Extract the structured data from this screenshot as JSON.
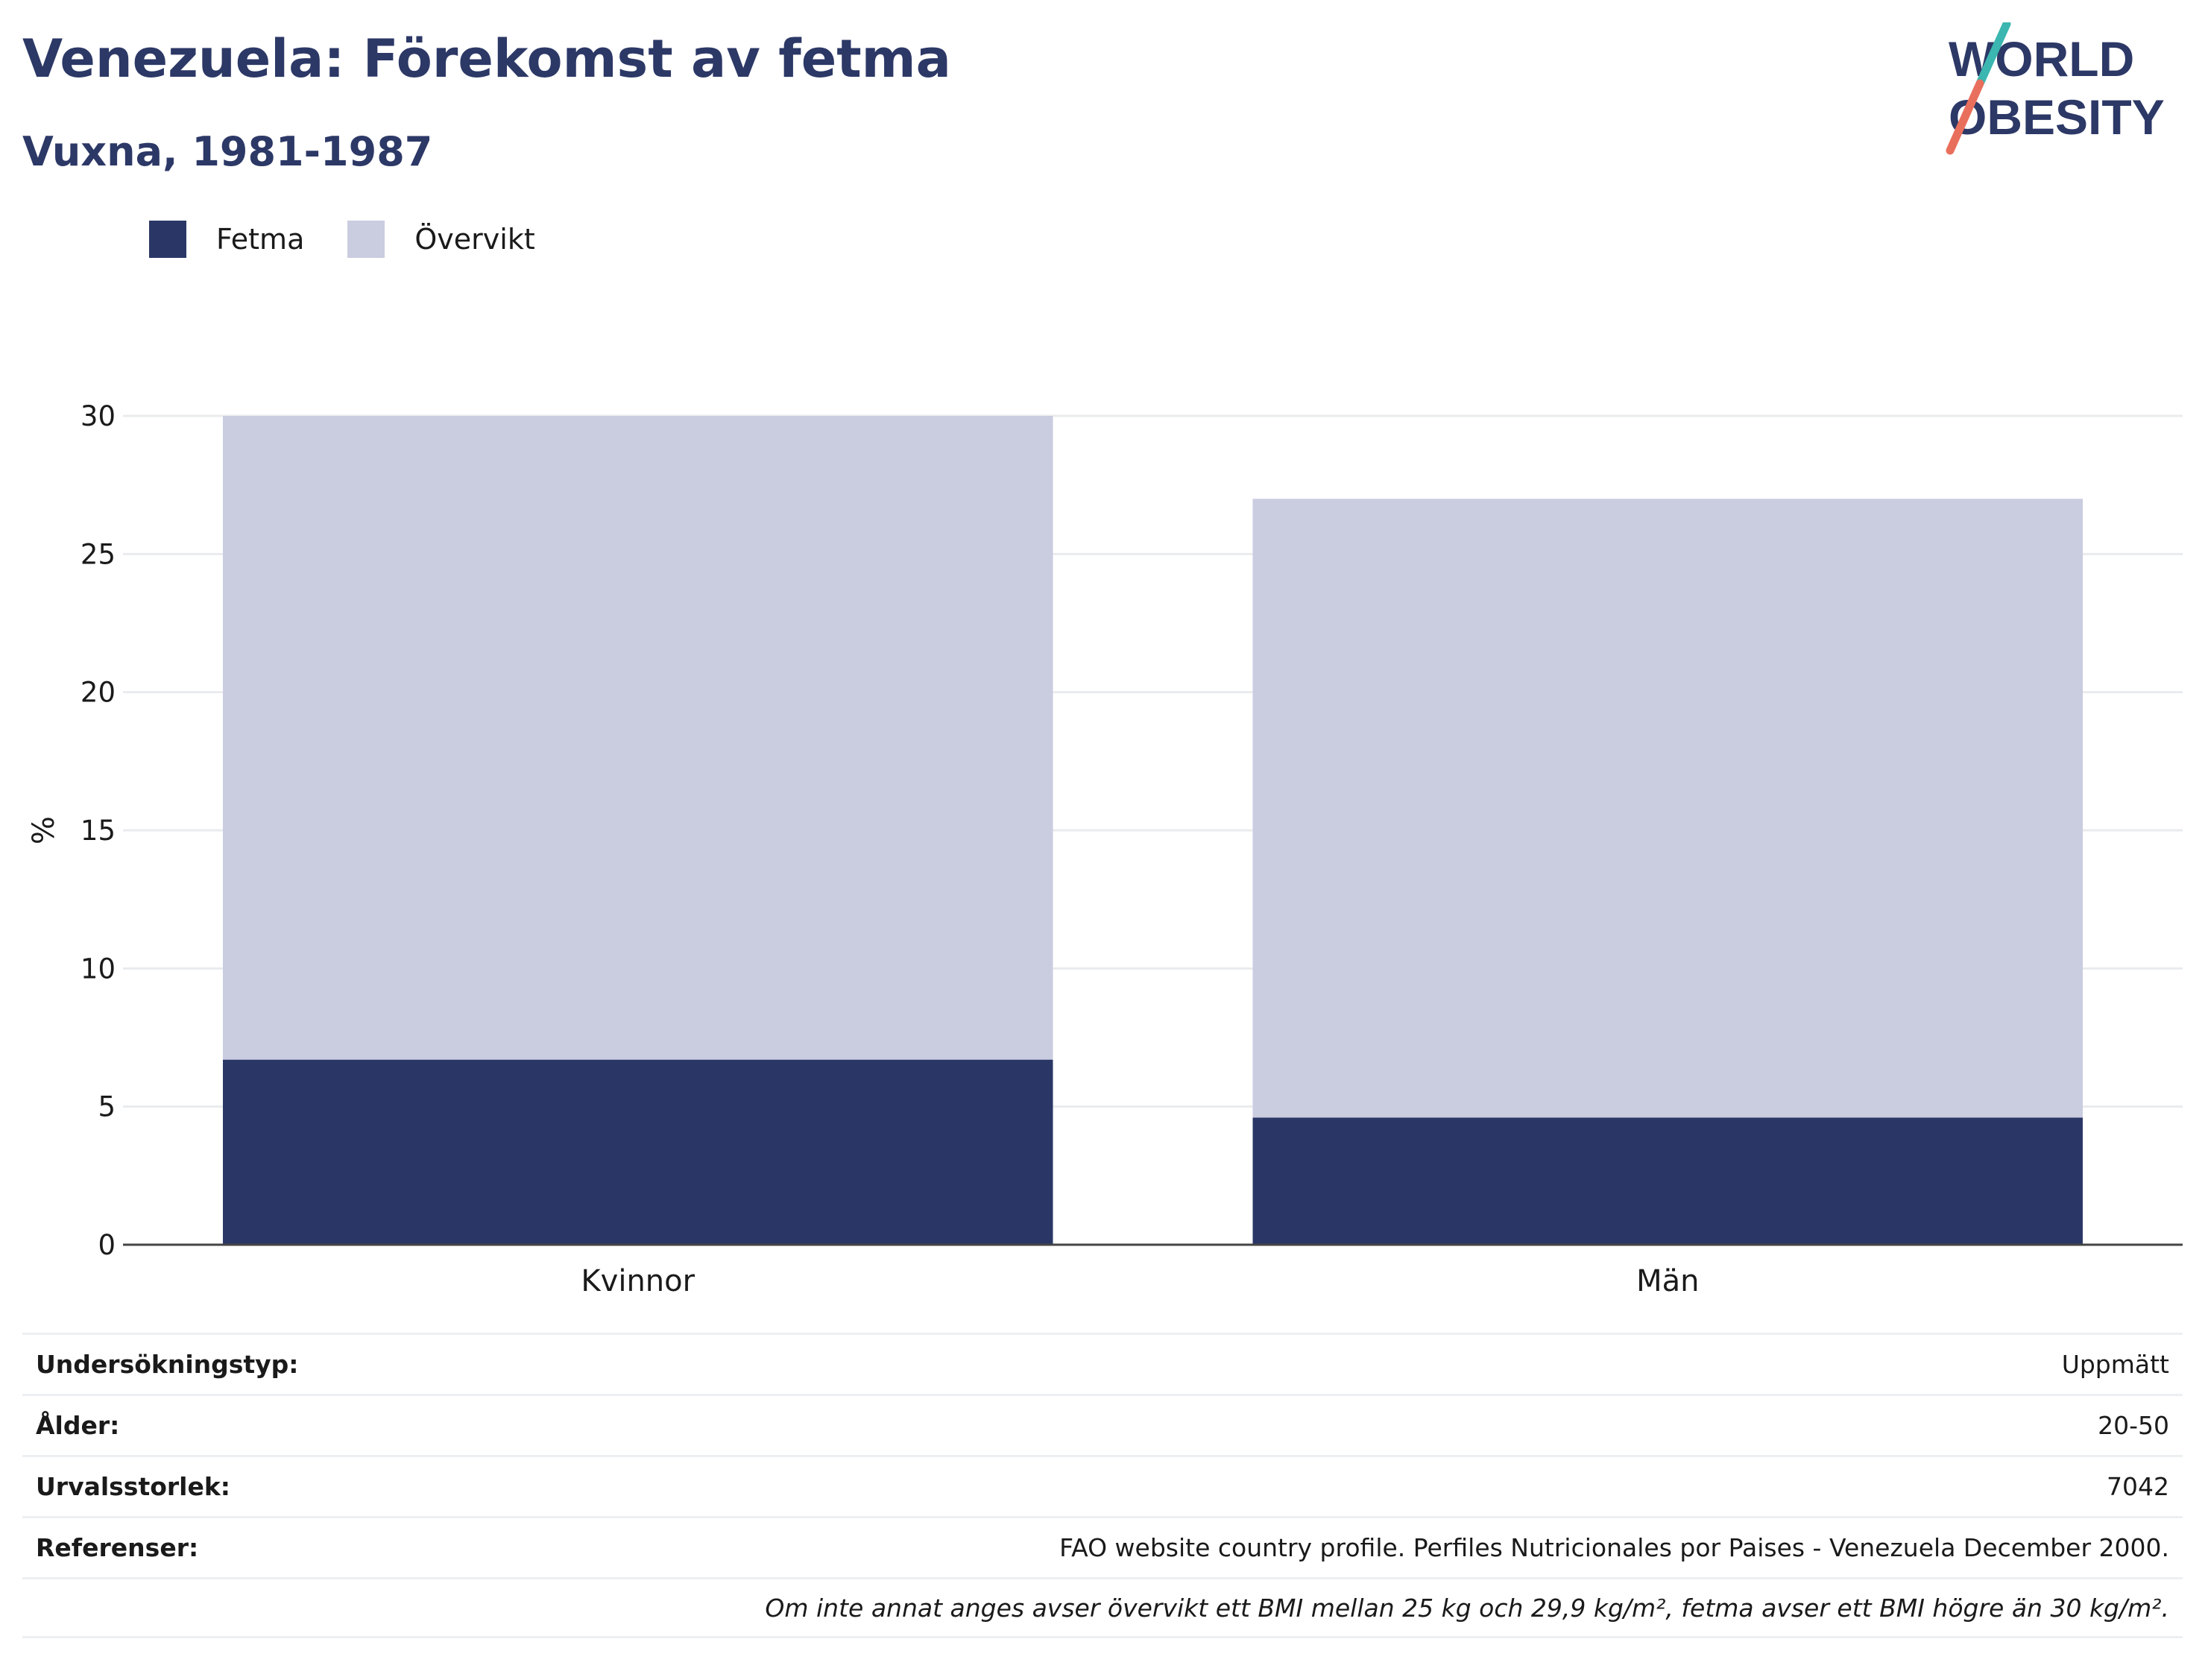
{
  "title": "Venezuela: Förekomst av fetma",
  "subtitle": "Vuxna, 1981-1987",
  "logo": {
    "line1": "WORLD",
    "line2": "OBESITY"
  },
  "colors": {
    "fetma": "#2a3766",
    "overvikt": "#cacce0",
    "heading": "#2c3866",
    "logo_teal": "#3bb6b0",
    "logo_coral": "#e96f5d"
  },
  "legend": [
    {
      "label": "Fetma",
      "color": "#2a3766"
    },
    {
      "label": "Övervikt",
      "color": "#cacce0"
    }
  ],
  "chart_data": {
    "type": "bar",
    "stacked": true,
    "categories": [
      "Kvinnor",
      "Män"
    ],
    "series": [
      {
        "name": "Fetma",
        "values": [
          6.7,
          4.6
        ]
      },
      {
        "name": "Övervikt",
        "values": [
          23.3,
          22.4
        ]
      }
    ],
    "ylabel": "%",
    "ylim": [
      0,
      30
    ],
    "yticks": [
      0,
      5,
      10,
      15,
      20,
      25,
      30
    ],
    "grid": true,
    "legend_position": "top-left"
  },
  "info": [
    {
      "label": "Undersökningstyp:",
      "value": "Uppmätt"
    },
    {
      "label": "Ålder:",
      "value": "20-50"
    },
    {
      "label": "Urvalsstorlek:",
      "value": "7042"
    },
    {
      "label": "Referenser:",
      "value": "FAO website country profile. Perfiles Nutricionales por Paises - Venezuela December 2000."
    }
  ],
  "note": "Om inte annat anges avser övervikt ett BMI mellan 25 kg och 29,9 kg/m², fetma avser ett BMI högre än 30 kg/m²."
}
